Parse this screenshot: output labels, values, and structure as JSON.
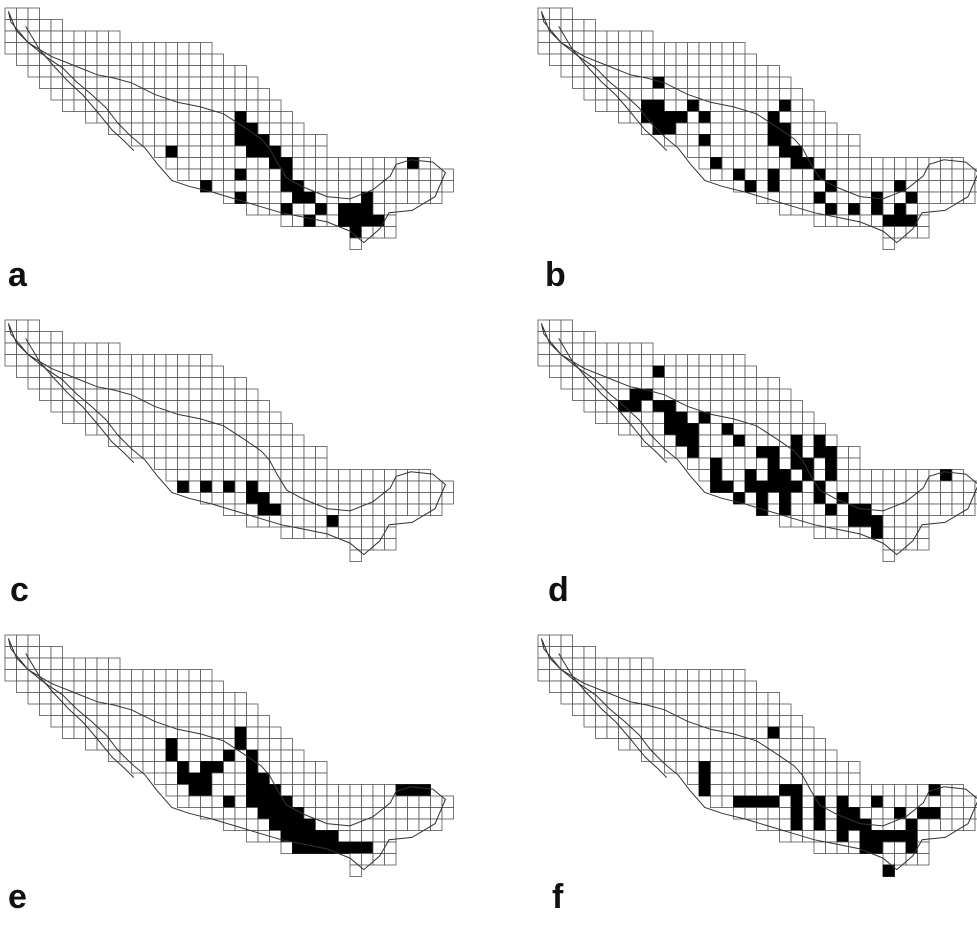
{
  "figure": {
    "panels": [
      {
        "id": "a",
        "label": "a"
      },
      {
        "id": "b",
        "label": "b"
      },
      {
        "id": "c",
        "label": "c"
      },
      {
        "id": "d",
        "label": "d"
      },
      {
        "id": "e",
        "label": "e"
      },
      {
        "id": "f",
        "label": "f"
      }
    ]
  }
}
